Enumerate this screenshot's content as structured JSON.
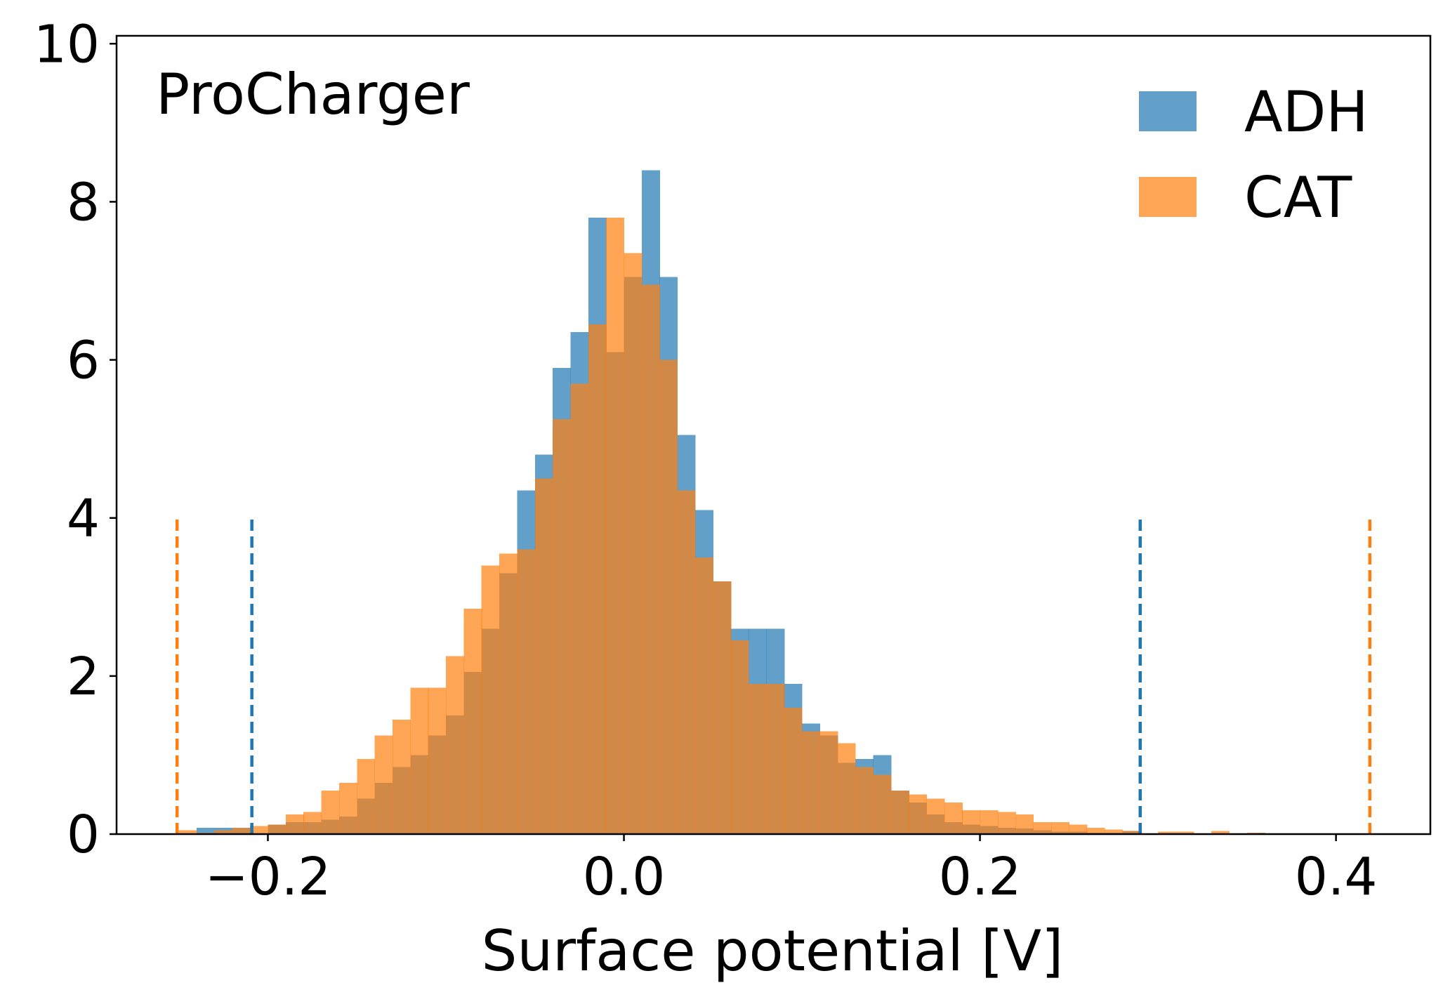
{
  "chart_data": {
    "type": "histogram",
    "title": "",
    "annotation": "ProCharger",
    "xlabel": "Surface potential [V]",
    "ylabel": "",
    "xlim": [
      -0.285,
      0.453
    ],
    "ylim": [
      0,
      10.1
    ],
    "x_ticks": [
      -0.2,
      0.0,
      0.2,
      0.4
    ],
    "x_tick_labels": [
      "−0.2",
      "0.0",
      "0.2",
      "0.4"
    ],
    "y_ticks": [
      0,
      2,
      4,
      6,
      8,
      10
    ],
    "y_tick_labels": [
      "0",
      "2",
      "4",
      "6",
      "8",
      "10"
    ],
    "legend": {
      "position": "top-right",
      "entries": [
        "ADH",
        "CAT"
      ]
    },
    "grid": false,
    "series": [
      {
        "name": "ADH",
        "color": "#1f77b4",
        "opacity": 0.7,
        "bins_left": [
          -0.24,
          -0.2,
          -0.19,
          -0.18,
          -0.17,
          -0.16,
          -0.15,
          -0.14,
          -0.13,
          -0.12,
          -0.11,
          -0.1,
          -0.09,
          -0.08,
          -0.07,
          -0.06,
          -0.05,
          -0.04,
          -0.03,
          -0.02,
          -0.01,
          0.0,
          0.01,
          0.02,
          0.03,
          0.04,
          0.05,
          0.06,
          0.07,
          0.08,
          0.09,
          0.1,
          0.11,
          0.12,
          0.13,
          0.14,
          0.15,
          0.16,
          0.17,
          0.18,
          0.19,
          0.2,
          0.21,
          0.22,
          0.23,
          0.24,
          0.25,
          0.26,
          0.27,
          0.28
        ],
        "bins_right": [
          -0.21,
          -0.19,
          -0.18,
          -0.17,
          -0.16,
          -0.15,
          -0.14,
          -0.13,
          -0.12,
          -0.11,
          -0.1,
          -0.09,
          -0.08,
          -0.07,
          -0.06,
          -0.05,
          -0.04,
          -0.03,
          -0.02,
          -0.01,
          0.0,
          0.01,
          0.02,
          0.03,
          0.04,
          0.05,
          0.06,
          0.07,
          0.08,
          0.09,
          0.1,
          0.11,
          0.12,
          0.13,
          0.14,
          0.15,
          0.16,
          0.17,
          0.18,
          0.19,
          0.2,
          0.21,
          0.22,
          0.23,
          0.24,
          0.25,
          0.26,
          0.27,
          0.28,
          0.29
        ],
        "values": [
          0.08,
          0.12,
          0.15,
          0.15,
          0.18,
          0.22,
          0.45,
          0.65,
          0.85,
          1.0,
          1.25,
          1.5,
          2.05,
          2.6,
          3.3,
          4.35,
          4.8,
          5.9,
          6.35,
          7.8,
          6.1,
          7.05,
          8.4,
          7.05,
          5.05,
          4.1,
          3.2,
          2.6,
          2.6,
          2.6,
          1.9,
          1.4,
          1.25,
          0.9,
          0.95,
          1.0,
          0.55,
          0.4,
          0.25,
          0.15,
          0.12,
          0.1,
          0.08,
          0.07,
          0.05,
          0.03,
          0.03,
          0.02,
          0.02,
          0.04
        ]
      },
      {
        "name": "CAT",
        "color": "#ff7f0e",
        "opacity": 0.7,
        "bins_left": [
          -0.25,
          -0.24,
          -0.23,
          -0.22,
          -0.21,
          -0.2,
          -0.19,
          -0.18,
          -0.17,
          -0.16,
          -0.15,
          -0.14,
          -0.13,
          -0.12,
          -0.11,
          -0.1,
          -0.09,
          -0.08,
          -0.07,
          -0.06,
          -0.05,
          -0.04,
          -0.03,
          -0.02,
          -0.01,
          0.0,
          0.01,
          0.02,
          0.03,
          0.04,
          0.05,
          0.06,
          0.07,
          0.08,
          0.09,
          0.1,
          0.11,
          0.12,
          0.13,
          0.14,
          0.15,
          0.16,
          0.17,
          0.18,
          0.19,
          0.2,
          0.21,
          0.22,
          0.23,
          0.24,
          0.25,
          0.26,
          0.27,
          0.28,
          0.3,
          0.33,
          0.35
        ],
        "bins_right": [
          -0.24,
          -0.23,
          -0.22,
          -0.21,
          -0.2,
          -0.19,
          -0.18,
          -0.17,
          -0.16,
          -0.15,
          -0.14,
          -0.13,
          -0.12,
          -0.11,
          -0.1,
          -0.09,
          -0.08,
          -0.07,
          -0.06,
          -0.05,
          -0.04,
          -0.03,
          -0.02,
          -0.01,
          0.0,
          0.01,
          0.02,
          0.03,
          0.04,
          0.05,
          0.06,
          0.07,
          0.08,
          0.09,
          0.1,
          0.11,
          0.12,
          0.13,
          0.14,
          0.15,
          0.16,
          0.17,
          0.18,
          0.19,
          0.2,
          0.21,
          0.22,
          0.23,
          0.24,
          0.25,
          0.26,
          0.27,
          0.28,
          0.29,
          0.32,
          0.34,
          0.36
        ],
        "values": [
          0.05,
          0.02,
          0.05,
          0.08,
          0.1,
          0.12,
          0.25,
          0.28,
          0.55,
          0.65,
          0.95,
          1.25,
          1.45,
          1.85,
          1.85,
          2.25,
          2.85,
          3.4,
          3.55,
          3.6,
          4.5,
          5.25,
          5.7,
          6.45,
          7.8,
          7.35,
          6.95,
          6.0,
          4.35,
          3.5,
          3.2,
          2.45,
          1.9,
          1.9,
          1.6,
          1.3,
          1.3,
          1.15,
          0.85,
          0.75,
          0.55,
          0.5,
          0.45,
          0.4,
          0.3,
          0.3,
          0.28,
          0.25,
          0.15,
          0.15,
          0.12,
          0.08,
          0.06,
          0.04,
          0.03,
          0.04,
          0.02
        ]
      }
    ],
    "vlines": [
      {
        "x": -0.251,
        "series": "CAT",
        "color": "#ff7f0e",
        "ymax": 4.05,
        "style": "dashed"
      },
      {
        "x": -0.209,
        "series": "ADH",
        "color": "#1f77b4",
        "ymax": 4.05,
        "style": "dashed"
      },
      {
        "x": 0.29,
        "series": "ADH",
        "color": "#1f77b4",
        "ymax": 4.05,
        "style": "dashed"
      },
      {
        "x": 0.419,
        "series": "CAT",
        "color": "#ff7f0e",
        "ymax": 4.05,
        "style": "dashed"
      }
    ]
  }
}
